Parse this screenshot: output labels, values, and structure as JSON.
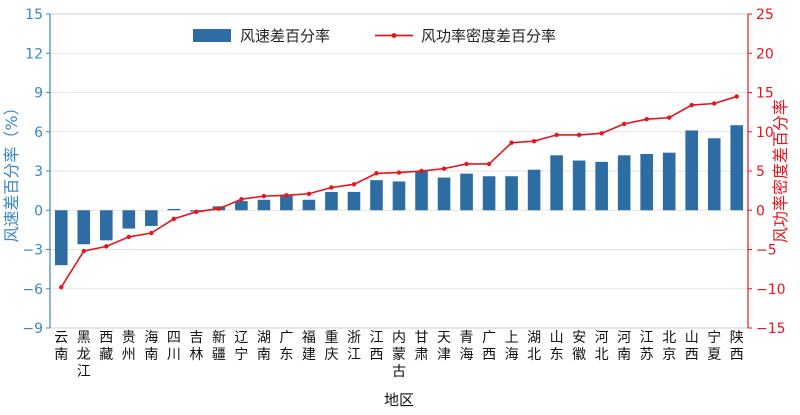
{
  "chart_data": {
    "type": "bar+line",
    "xlabel": "地区",
    "ylabel_left": "风速差百分率（%）",
    "ylabel_right": "风功率密度差百分率",
    "ylim_left": [
      -9,
      15
    ],
    "ylim_right": [
      -15,
      25
    ],
    "yticks_left": [
      -9,
      -6,
      -3,
      0,
      3,
      6,
      9,
      12,
      15
    ],
    "yticks_right": [
      -15,
      -10,
      -5,
      0,
      5,
      10,
      15,
      20,
      25
    ],
    "legend_position": "top-center",
    "grid": "horizontal",
    "colors": {
      "bar": "#2e6da4",
      "line": "#e8141c",
      "left_axis": "#3a86c8",
      "right_axis": "#e8141c"
    },
    "categories": [
      "云南",
      "黑龙江",
      "西藏",
      "贵州",
      "海南",
      "四川",
      "吉林",
      "新疆",
      "辽宁",
      "湖南",
      "广东",
      "福建",
      "重庆",
      "浙江",
      "江西",
      "内蒙古",
      "甘肃",
      "天津",
      "青海",
      "广西",
      "上海",
      "湖北",
      "山东",
      "安徽",
      "河北",
      "河南",
      "江苏",
      "北京",
      "山西",
      "宁夏",
      "陕西"
    ],
    "series": [
      {
        "name": "风速差百分率",
        "type": "bar",
        "axis": "left",
        "values": [
          -4.2,
          -2.6,
          -2.3,
          -1.4,
          -1.2,
          0.1,
          -0.1,
          0.3,
          0.7,
          0.8,
          1.2,
          0.8,
          1.4,
          1.4,
          2.3,
          2.2,
          3.0,
          2.5,
          2.8,
          2.6,
          2.6,
          3.1,
          4.2,
          3.8,
          3.7,
          4.2,
          4.3,
          4.4,
          6.1,
          5.5,
          6.5
        ]
      },
      {
        "name": "风功率密度差百分率",
        "type": "line",
        "axis": "right",
        "values": [
          -9.8,
          -5.2,
          -4.6,
          -3.4,
          -2.9,
          -1.1,
          -0.2,
          0.2,
          1.4,
          1.8,
          1.9,
          2.1,
          2.9,
          3.3,
          4.7,
          4.8,
          5.0,
          5.3,
          5.9,
          5.9,
          8.6,
          8.8,
          9.6,
          9.6,
          9.8,
          11.0,
          11.6,
          11.8,
          13.4,
          13.6,
          14.5
        ]
      }
    ]
  }
}
